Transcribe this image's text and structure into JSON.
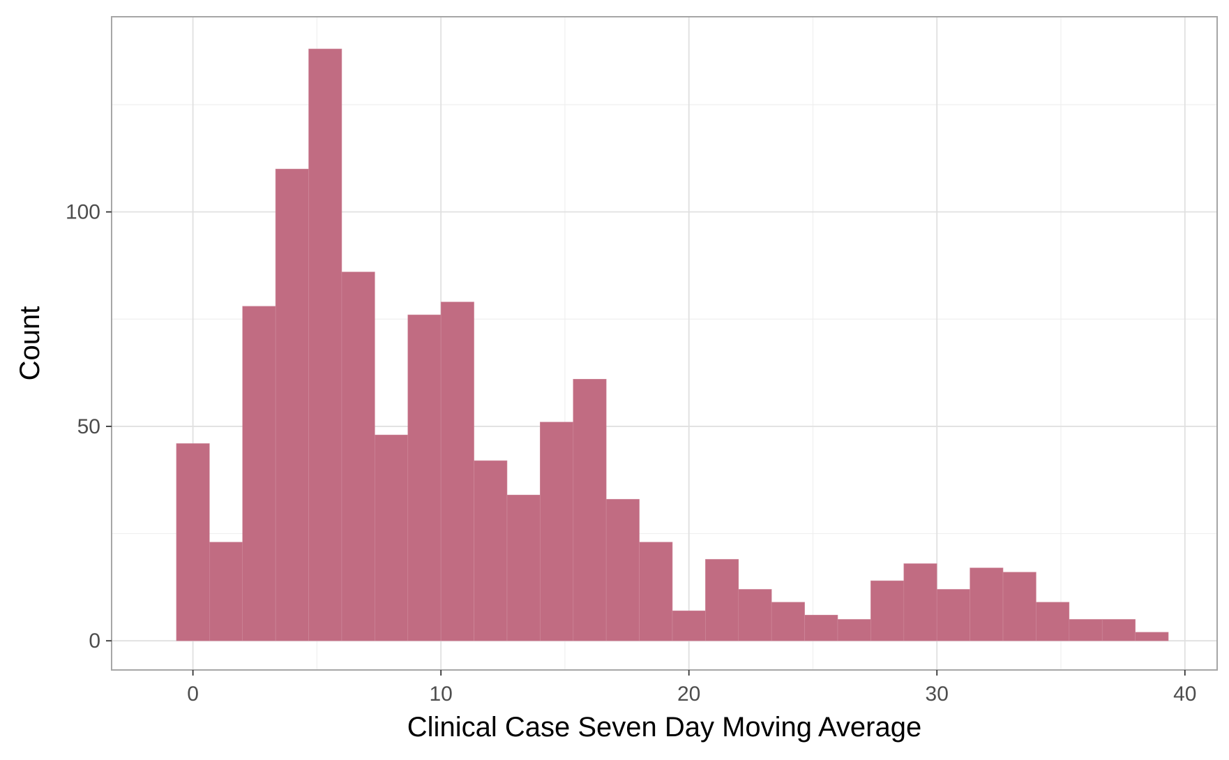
{
  "chart_data": {
    "type": "bar",
    "title": "",
    "xlabel": "Clinical Case Seven Day Moving Average",
    "ylabel": "Count",
    "xlim": [
      -3.28,
      41.3
    ],
    "ylim": [
      -6.8,
      145.5
    ],
    "xticks": [
      0,
      10,
      20,
      30,
      40
    ],
    "yticks": [
      0,
      50,
      100
    ],
    "x_minor_grid": [
      5,
      15,
      25,
      35
    ],
    "y_minor_grid": [
      25,
      75,
      125
    ],
    "grid": true,
    "legend": "none",
    "bin_width": 1.3333,
    "bin_start": -0.6667,
    "values": [
      46,
      23,
      78,
      110,
      138,
      86,
      48,
      76,
      79,
      42,
      34,
      51,
      61,
      33,
      23,
      7,
      19,
      12,
      9,
      6,
      5,
      14,
      18,
      12,
      17,
      16,
      9,
      5,
      5,
      2
    ],
    "colors": {
      "bar_fill": "#c16c82",
      "bar_edge": "#cf8a9c",
      "panel_border": "#a6a6a6",
      "grid_major": "#e0e0e0",
      "grid_minor": "#efefef",
      "tick_mark": "#333333"
    }
  }
}
